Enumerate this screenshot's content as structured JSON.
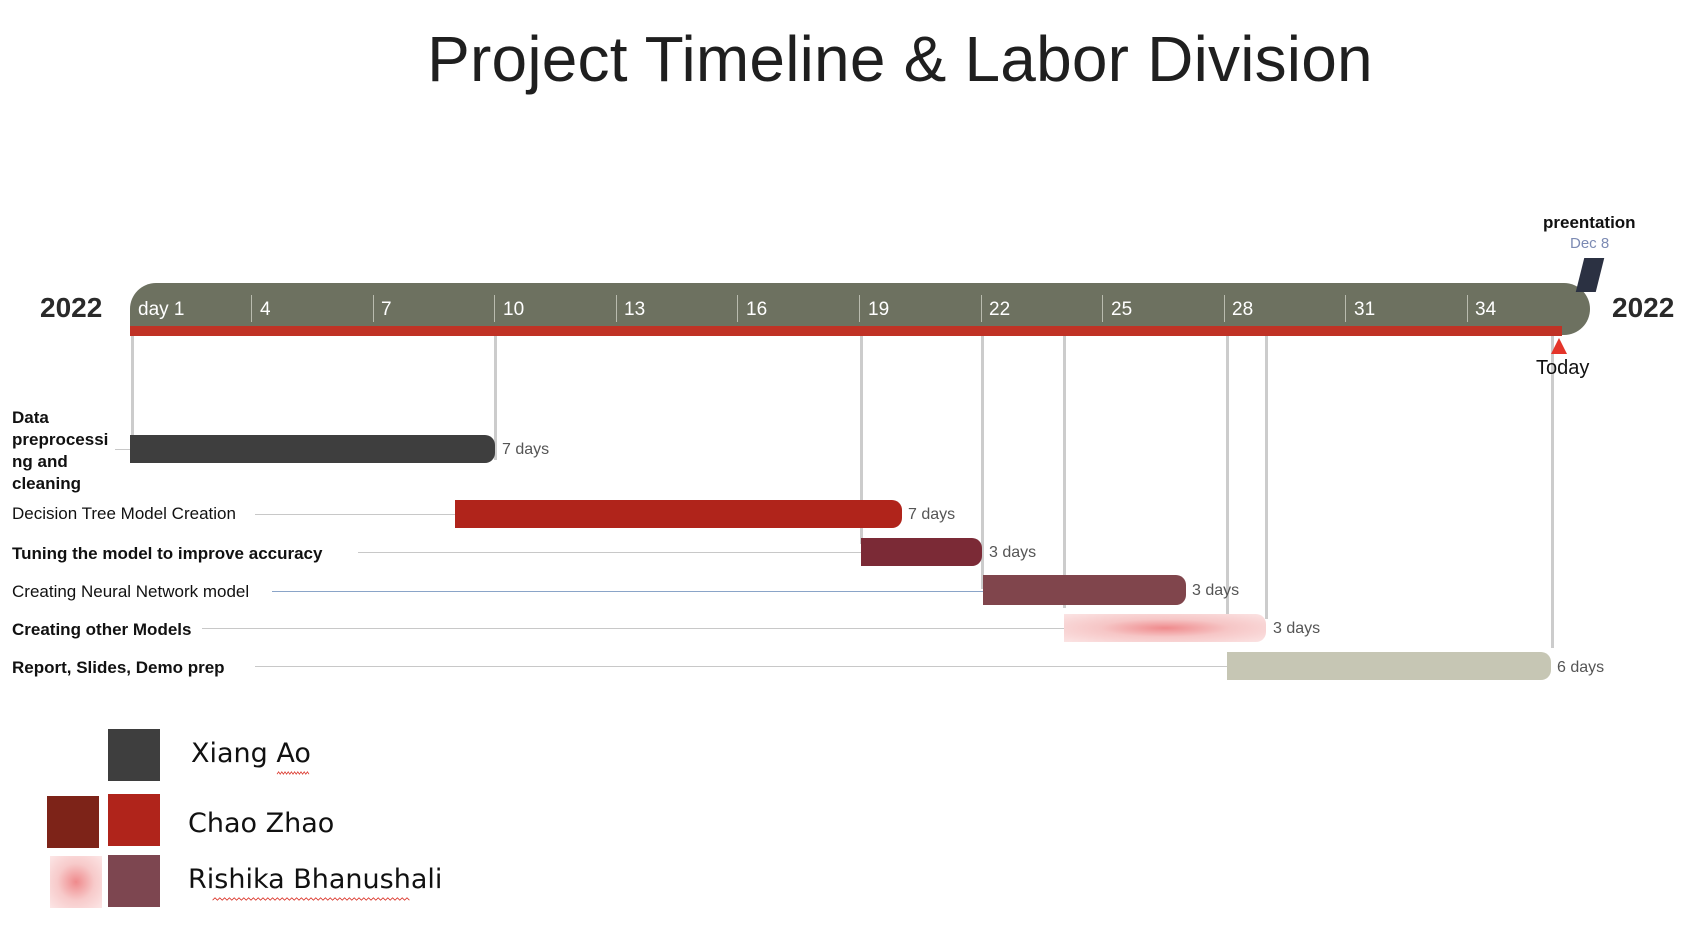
{
  "title": "Project Timeline & Labor Division",
  "year_left": "2022",
  "year_right": "2022",
  "timeline": {
    "ticks": [
      "day 1",
      "4",
      "7",
      "10",
      "13",
      "16",
      "19",
      "22",
      "25",
      "28",
      "31",
      "34"
    ],
    "bar_color": "#6d7160",
    "progress_color": "#c03225"
  },
  "milestone": {
    "label": "preentation",
    "date": "Dec 8",
    "color": "#2b3142"
  },
  "today": {
    "label": "Today",
    "color": "#e4352a"
  },
  "tasks": [
    {
      "label": "Data preprocessi ng and cleaning",
      "duration": "7 days",
      "bold": true
    },
    {
      "label": "Decision Tree Model Creation",
      "duration": "7 days",
      "bold": false
    },
    {
      "label": "Tuning the model to improve accuracy",
      "duration": "3 days",
      "bold": true
    },
    {
      "label": "Creating Neural Network model",
      "duration": "3 days",
      "bold": false
    },
    {
      "label": "Creating other Models",
      "duration": "3 days",
      "bold": true
    },
    {
      "label": "Report, Slides, Demo prep",
      "duration": "6 days",
      "bold": true
    }
  ],
  "task_label_lines": [
    "Data",
    "preprocessi",
    "ng and",
    "cleaning"
  ],
  "task_colors": [
    "#3e3e3e",
    "#b0241b",
    "#7b2a36",
    "#80454c",
    "#f08c8e",
    "#c6c6b4"
  ],
  "legend": [
    {
      "name": "Xiang Ao",
      "colors": [
        "#3e3e3e"
      ]
    },
    {
      "name": "Chao Zhao",
      "colors": [
        "#7d2318",
        "#b0241b"
      ]
    },
    {
      "name": "Rishika Bhanushali",
      "colors": [
        "#f08c8e",
        "#7d4650"
      ]
    }
  ]
}
